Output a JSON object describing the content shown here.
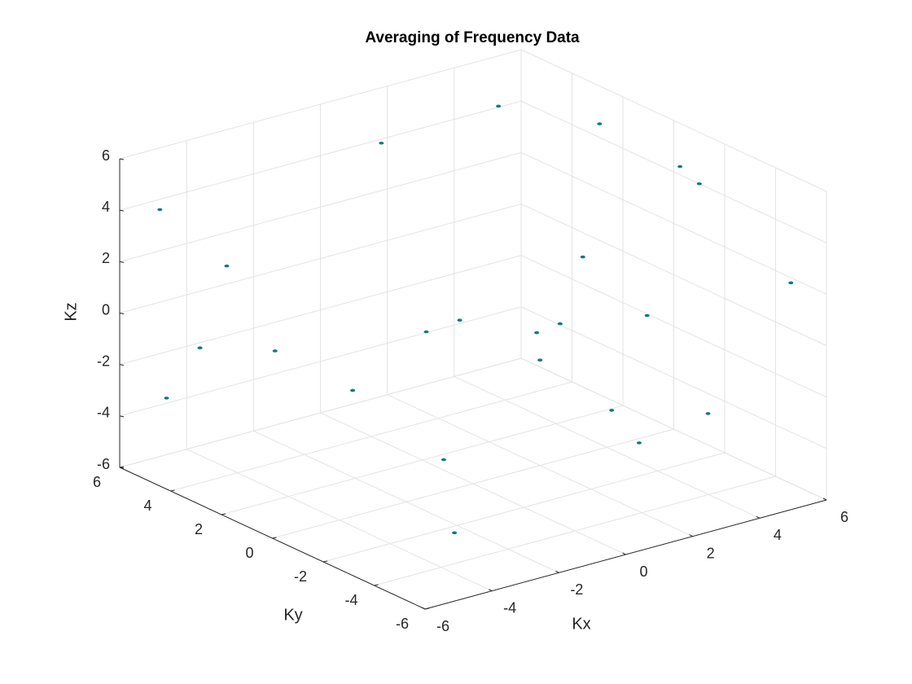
{
  "chart_data": {
    "type": "scatter3d",
    "title": "Averaging of Frequency Data",
    "xlabel": "Kx",
    "ylabel": "Ky",
    "zlabel": "Kz",
    "xlim": [
      -6,
      6
    ],
    "ylim": [
      -6,
      6
    ],
    "zlim": [
      -6,
      6
    ],
    "xticks": [
      -6,
      -4,
      -2,
      0,
      2,
      4,
      6
    ],
    "yticks": [
      -6,
      -4,
      -2,
      0,
      2,
      4,
      6
    ],
    "zticks": [
      -6,
      -4,
      -2,
      0,
      2,
      4,
      6
    ],
    "grid": true,
    "series": [
      {
        "color": "#0f7a78",
        "x": [
          2.6,
          0.3,
          -4.8,
          -4.6,
          -2.4,
          -3.6,
          5.5,
          6.0,
          6.0,
          5.3,
          3.8,
          -4.4,
          -3.6,
          0.4,
          5.5,
          2.0,
          5.2,
          -3.6,
          -0.4,
          -2.8,
          -1.4,
          1.9,
          1.1,
          4.8
        ],
        "y": [
          0,
          4,
          6,
          6,
          -2,
          -4,
          -0.9,
          -1.0,
          -4.6,
          2,
          4,
          2,
          0,
          -6,
          -2,
          0,
          0,
          6,
          0,
          6,
          0,
          0,
          -4,
          2
        ],
        "z": [
          -0.7,
          5.3,
          3.6,
          -3.8,
          -3.3,
          -4.8,
          4.8,
          4.0,
          1.8,
          5.2,
          5.5,
          -0.2,
          -1.1,
          -1.8,
          -4.3,
          -1.9,
          -1.3,
          -2.2,
          0.5,
          0.7,
          0.4,
          -0.8,
          -1.7,
          0.2
        ]
      }
    ]
  }
}
